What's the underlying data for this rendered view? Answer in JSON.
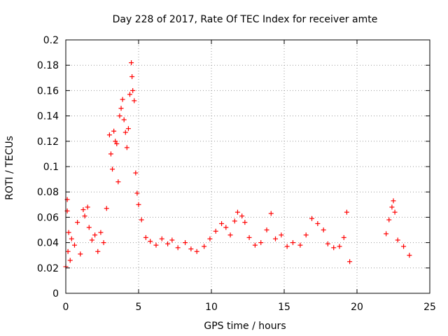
{
  "chart_data": {
    "type": "scatter",
    "title": "Day 228 of 2017, Rate Of TEC Index for receiver amte",
    "xlabel": "GPS time / hours",
    "ylabel": "ROTI / TECUs",
    "xlim": [
      0,
      25
    ],
    "ylim": [
      0,
      0.2
    ],
    "x_ticks": [
      "0",
      "5",
      "10",
      "15",
      "20",
      "25"
    ],
    "y_ticks": [
      "0",
      "0.02",
      "0.04",
      "0.06",
      "0.08",
      "0.1",
      "0.12",
      "0.14",
      "0.16",
      "0.18",
      "0.2"
    ],
    "grid": true,
    "marker": "plus",
    "color": "#ff0000",
    "series": [
      {
        "points": [
          [
            0.0,
            0.021
          ],
          [
            0.1,
            0.074
          ],
          [
            0.1,
            0.065
          ],
          [
            0.15,
            0.033
          ],
          [
            0.2,
            0.048
          ],
          [
            0.3,
            0.026
          ],
          [
            0.4,
            0.043
          ],
          [
            0.6,
            0.038
          ],
          [
            0.8,
            0.056
          ],
          [
            1.0,
            0.031
          ],
          [
            1.2,
            0.066
          ],
          [
            1.3,
            0.061
          ],
          [
            1.5,
            0.068
          ],
          [
            1.6,
            0.052
          ],
          [
            1.8,
            0.042
          ],
          [
            2.0,
            0.046
          ],
          [
            2.2,
            0.033
          ],
          [
            2.4,
            0.048
          ],
          [
            2.6,
            0.04
          ],
          [
            2.8,
            0.067
          ],
          [
            3.0,
            0.125
          ],
          [
            3.1,
            0.11
          ],
          [
            3.2,
            0.098
          ],
          [
            3.3,
            0.128
          ],
          [
            3.4,
            0.12
          ],
          [
            3.5,
            0.118
          ],
          [
            3.6,
            0.088
          ],
          [
            3.7,
            0.14
          ],
          [
            3.8,
            0.146
          ],
          [
            3.9,
            0.153
          ],
          [
            4.0,
            0.137
          ],
          [
            4.1,
            0.127
          ],
          [
            4.2,
            0.115
          ],
          [
            4.3,
            0.13
          ],
          [
            4.4,
            0.157
          ],
          [
            4.5,
            0.182
          ],
          [
            4.55,
            0.171
          ],
          [
            4.6,
            0.16
          ],
          [
            4.7,
            0.152
          ],
          [
            4.8,
            0.095
          ],
          [
            4.9,
            0.079
          ],
          [
            5.0,
            0.07
          ],
          [
            5.2,
            0.058
          ],
          [
            5.5,
            0.044
          ],
          [
            5.8,
            0.041
          ],
          [
            6.2,
            0.038
          ],
          [
            6.6,
            0.043
          ],
          [
            7.0,
            0.039
          ],
          [
            7.3,
            0.042
          ],
          [
            7.7,
            0.036
          ],
          [
            8.2,
            0.04
          ],
          [
            8.6,
            0.035
          ],
          [
            9.0,
            0.033
          ],
          [
            9.5,
            0.037
          ],
          [
            9.9,
            0.043
          ],
          [
            10.3,
            0.049
          ],
          [
            10.7,
            0.055
          ],
          [
            11.0,
            0.052
          ],
          [
            11.3,
            0.046
          ],
          [
            11.6,
            0.057
          ],
          [
            11.8,
            0.064
          ],
          [
            12.1,
            0.061
          ],
          [
            12.3,
            0.056
          ],
          [
            12.6,
            0.044
          ],
          [
            13.0,
            0.038
          ],
          [
            13.4,
            0.04
          ],
          [
            13.8,
            0.05
          ],
          [
            14.1,
            0.063
          ],
          [
            14.4,
            0.043
          ],
          [
            14.8,
            0.046
          ],
          [
            15.2,
            0.037
          ],
          [
            15.6,
            0.04
          ],
          [
            16.1,
            0.038
          ],
          [
            16.5,
            0.046
          ],
          [
            16.9,
            0.059
          ],
          [
            17.3,
            0.055
          ],
          [
            17.7,
            0.05
          ],
          [
            18.0,
            0.039
          ],
          [
            18.4,
            0.036
          ],
          [
            18.8,
            0.037
          ],
          [
            19.1,
            0.044
          ],
          [
            19.3,
            0.064
          ],
          [
            19.5,
            0.025
          ],
          [
            22.0,
            0.047
          ],
          [
            22.2,
            0.058
          ],
          [
            22.4,
            0.068
          ],
          [
            22.5,
            0.073
          ],
          [
            22.6,
            0.064
          ],
          [
            22.8,
            0.042
          ],
          [
            23.2,
            0.037
          ],
          [
            23.6,
            0.03
          ]
        ]
      }
    ]
  }
}
